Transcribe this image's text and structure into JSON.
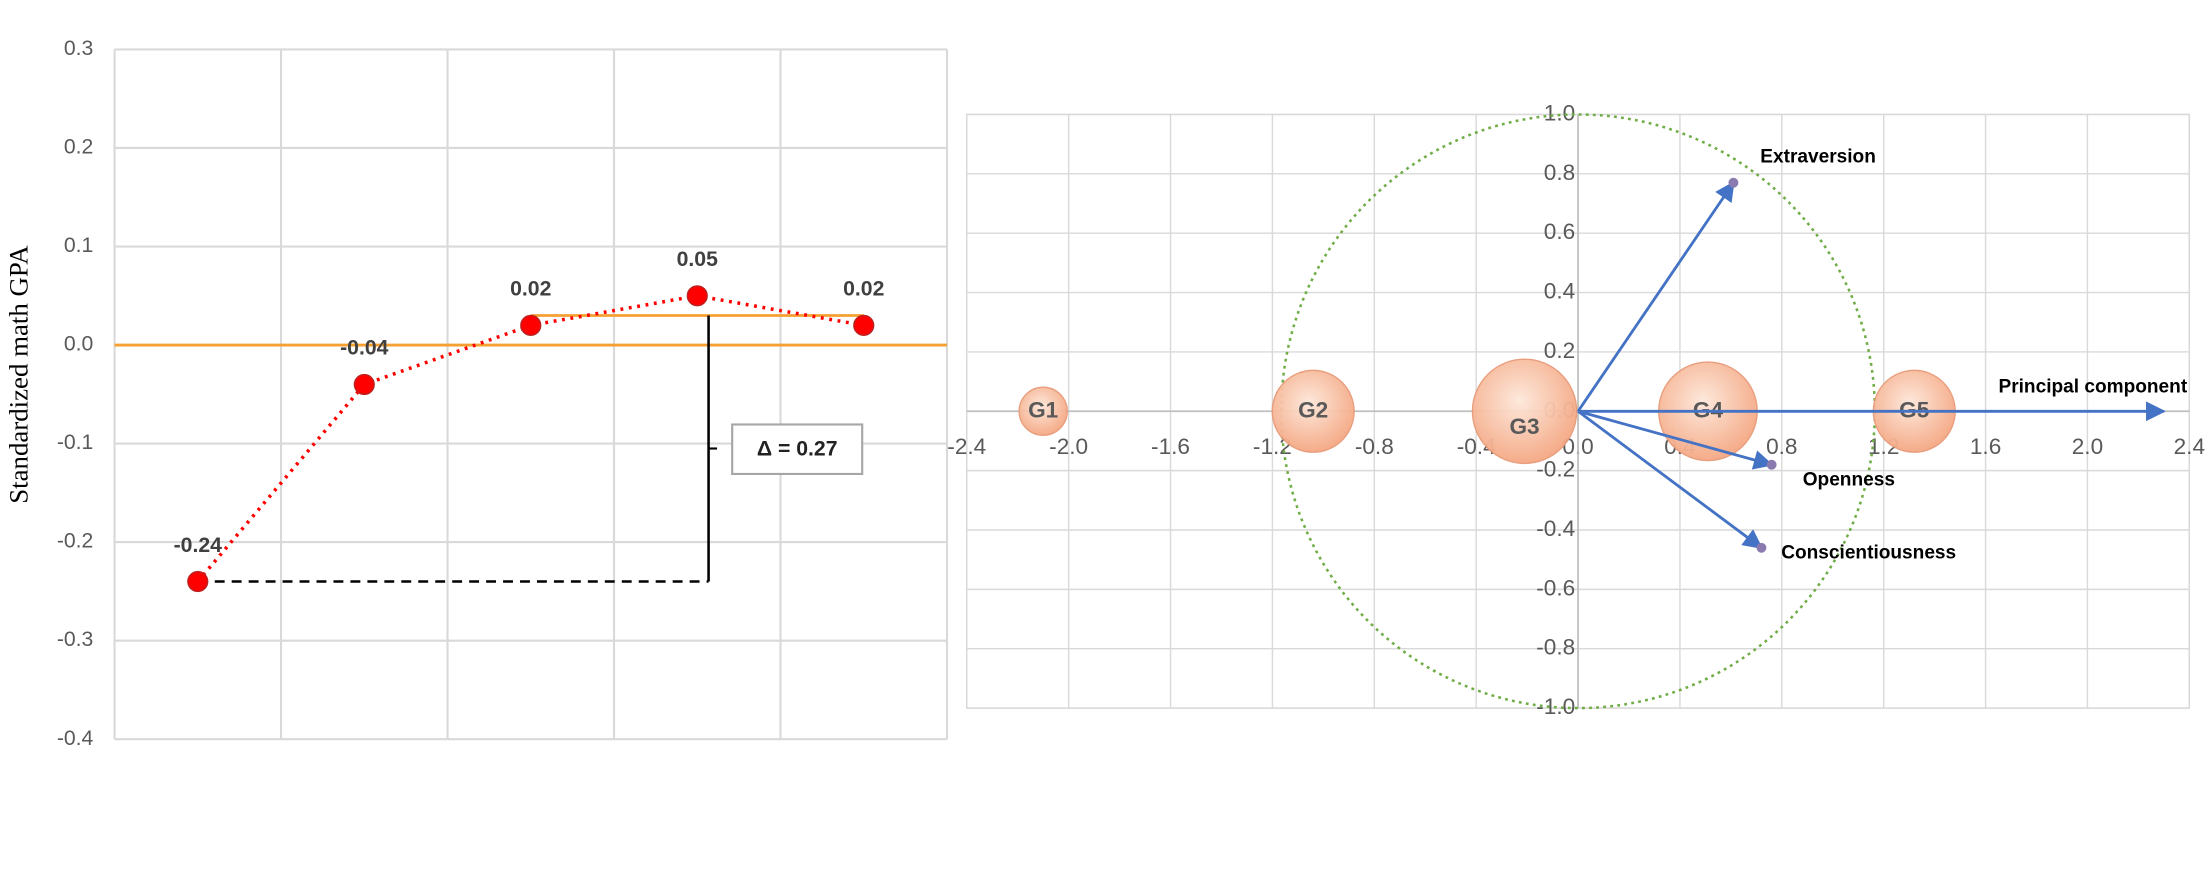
{
  "chart_data": [
    {
      "type": "line",
      "y_label": "Standardized math GPA",
      "categories": [
        null,
        null,
        null,
        null,
        null
      ],
      "values": [
        -0.24,
        -0.04,
        0.02,
        0.05,
        0.02
      ],
      "color": "#ff0000",
      "ylim": [
        -0.4,
        0.3
      ],
      "yticks": [
        0.3,
        0.2,
        0.1,
        {
          "value": 0,
          "label": "0.0"
        },
        -0.1,
        -0.2,
        -0.3,
        -0.4
      ],
      "grid": true,
      "reference_lines": [
        {
          "value": 0,
          "color": "#f5a030"
        },
        {
          "value": 0.03,
          "color": "#f5a030"
        }
      ],
      "annotation": "Δ = 0.27"
    },
    {
      "type": "bubble",
      "x": [
        -2.1,
        -1.04,
        -0.21,
        0.51,
        1.32
      ],
      "values": [
        0,
        0,
        0,
        0,
        0
      ],
      "sizes": [
        1,
        2.9,
        4.7,
        4.2,
        2.9
      ],
      "labels": [
        "G1",
        "G2",
        "G3",
        "G4",
        "G5"
      ],
      "xlim": [
        -2.4,
        2.4
      ],
      "xticks": [
        -2.4,
        {
          "value": -2,
          "label": "-2.0"
        },
        -1.6,
        -1.2,
        -0.8,
        -0.4,
        {
          "value": 0,
          "label": "0.0"
        },
        0.4,
        0.8,
        1.2,
        1.6,
        {
          "value": 2,
          "label": "2.0"
        },
        2.4
      ],
      "ylim": [
        -1,
        1
      ],
      "yticks": [
        {
          "value": 1,
          "label": "1.0"
        },
        0.8,
        0.6,
        0.4,
        0.2,
        {
          "value": 0,
          "label": "0.0"
        },
        -0.2,
        -0.4,
        -0.6,
        -0.8,
        {
          "value": -1,
          "label": "-1.0"
        }
      ],
      "grid": true,
      "vectors": [
        {
          "name": "Extraversion",
          "x": 0.61,
          "y": 0.77
        },
        {
          "name": "Openness",
          "x": 0.76,
          "y": -0.18
        },
        {
          "name": "Conscientiousness",
          "x": 0.72,
          "y": -0.46
        },
        {
          "name": "Principal component",
          "x": 2.3,
          "y": 0
        }
      ],
      "vector_color": "#4472c4",
      "circle_radius": 1,
      "circle_color": "#70ad47"
    }
  ]
}
